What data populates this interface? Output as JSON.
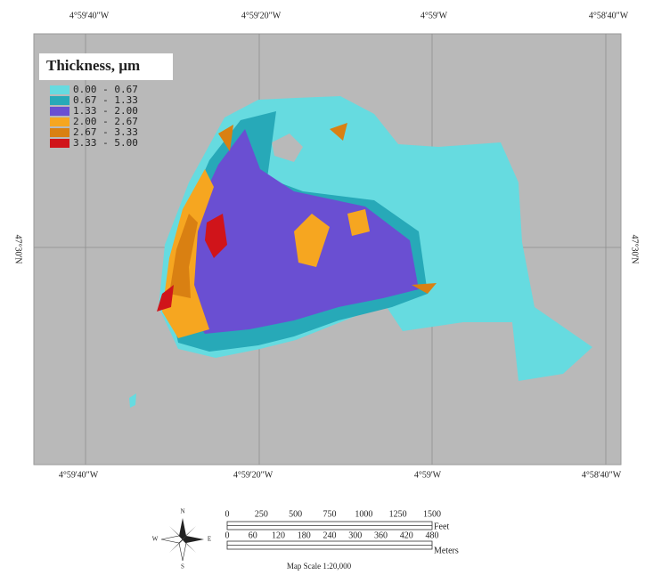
{
  "map": {
    "top_labels": [
      "4°59'40\"W",
      "4°59'20\"W",
      "4°59'W",
      "4°58'40\"W"
    ],
    "bottom_labels": [
      "4°59'40\"W",
      "4°59'20\"W",
      "4°59'W",
      "4°58'40\"W"
    ],
    "left_label": "47°30'N",
    "right_label": "47°30'N",
    "legend": {
      "title": "Thickness, µm",
      "items": [
        {
          "label": "0.00 - 0.67",
          "color": "#66dbe0"
        },
        {
          "label": "0.67 - 1.33",
          "color": "#27a9b8"
        },
        {
          "label": "1.33 - 2.00",
          "color": "#6a4fd2"
        },
        {
          "label": "2.00 - 2.67",
          "color": "#f6a620"
        },
        {
          "label": "2.67 - 3.33",
          "color": "#d98012"
        },
        {
          "label": "3.33 - 5.00",
          "color": "#d0141a"
        }
      ]
    },
    "compass": [
      "N",
      "E",
      "S",
      "W"
    ],
    "scale": {
      "feet_ticks": [
        "0",
        "250",
        "500",
        "750",
        "1000",
        "1250",
        "1500"
      ],
      "feet_unit": "Feet",
      "meter_ticks": [
        "0",
        "60",
        "120",
        "180",
        "240",
        "300",
        "360",
        "420",
        "480"
      ],
      "meter_unit": "Meters",
      "caption": "Map Scale 1:20,000"
    }
  }
}
